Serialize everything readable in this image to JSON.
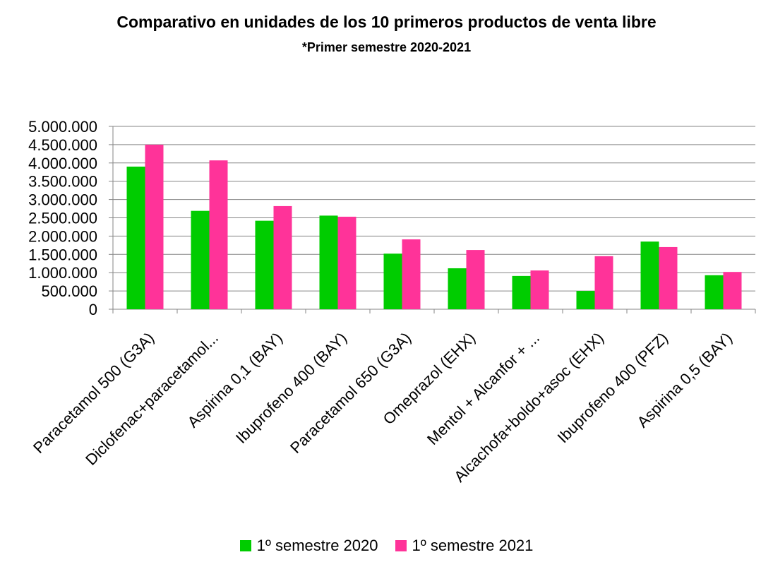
{
  "chart_data": {
    "type": "bar",
    "title": "Comparativo  en unidades de los 10 primeros  productos de venta libre",
    "subtitle": "*Primer semestre 2020-2021",
    "categories": [
      "Paracetamol 500 (G3A)",
      "Diclofenac+paracetamol...",
      "Aspirina 0,1 (BAY)",
      "Ibuprofeno 400 (BAY)",
      "Paracetamol 650 (G3A)",
      "Omeprazol (EHX)",
      "Mentol + Alcanfor + ...",
      "Alcachofa+boldo+asoc (EHX)",
      "Ibuprofeno 400 (PFZ)",
      "Aspirina 0,5 (BAY)"
    ],
    "series": [
      {
        "name": "1º semestre 2020",
        "color": "#00CC00",
        "values": [
          3900000,
          2690000,
          2420000,
          2560000,
          1520000,
          1120000,
          910000,
          500000,
          1850000,
          930000
        ]
      },
      {
        "name": "1º semestre 2021",
        "color": "#FF3399",
        "values": [
          4500000,
          4070000,
          2820000,
          2530000,
          1910000,
          1620000,
          1060000,
          1450000,
          1700000,
          1020000
        ]
      }
    ],
    "ylim": [
      0,
      5000000
    ],
    "yticks": [
      0,
      500000,
      1000000,
      1500000,
      2000000,
      2500000,
      3000000,
      3500000,
      4000000,
      4500000,
      5000000
    ],
    "ytick_labels": [
      "0",
      "500.000",
      "1.000.000",
      "1.500.000",
      "2.000.000",
      "2.500.000",
      "3.000.000",
      "3.500.000",
      "4.000.000",
      "4.500.000",
      "5.000.000"
    ],
    "grid": true,
    "legend_position": "bottom"
  }
}
